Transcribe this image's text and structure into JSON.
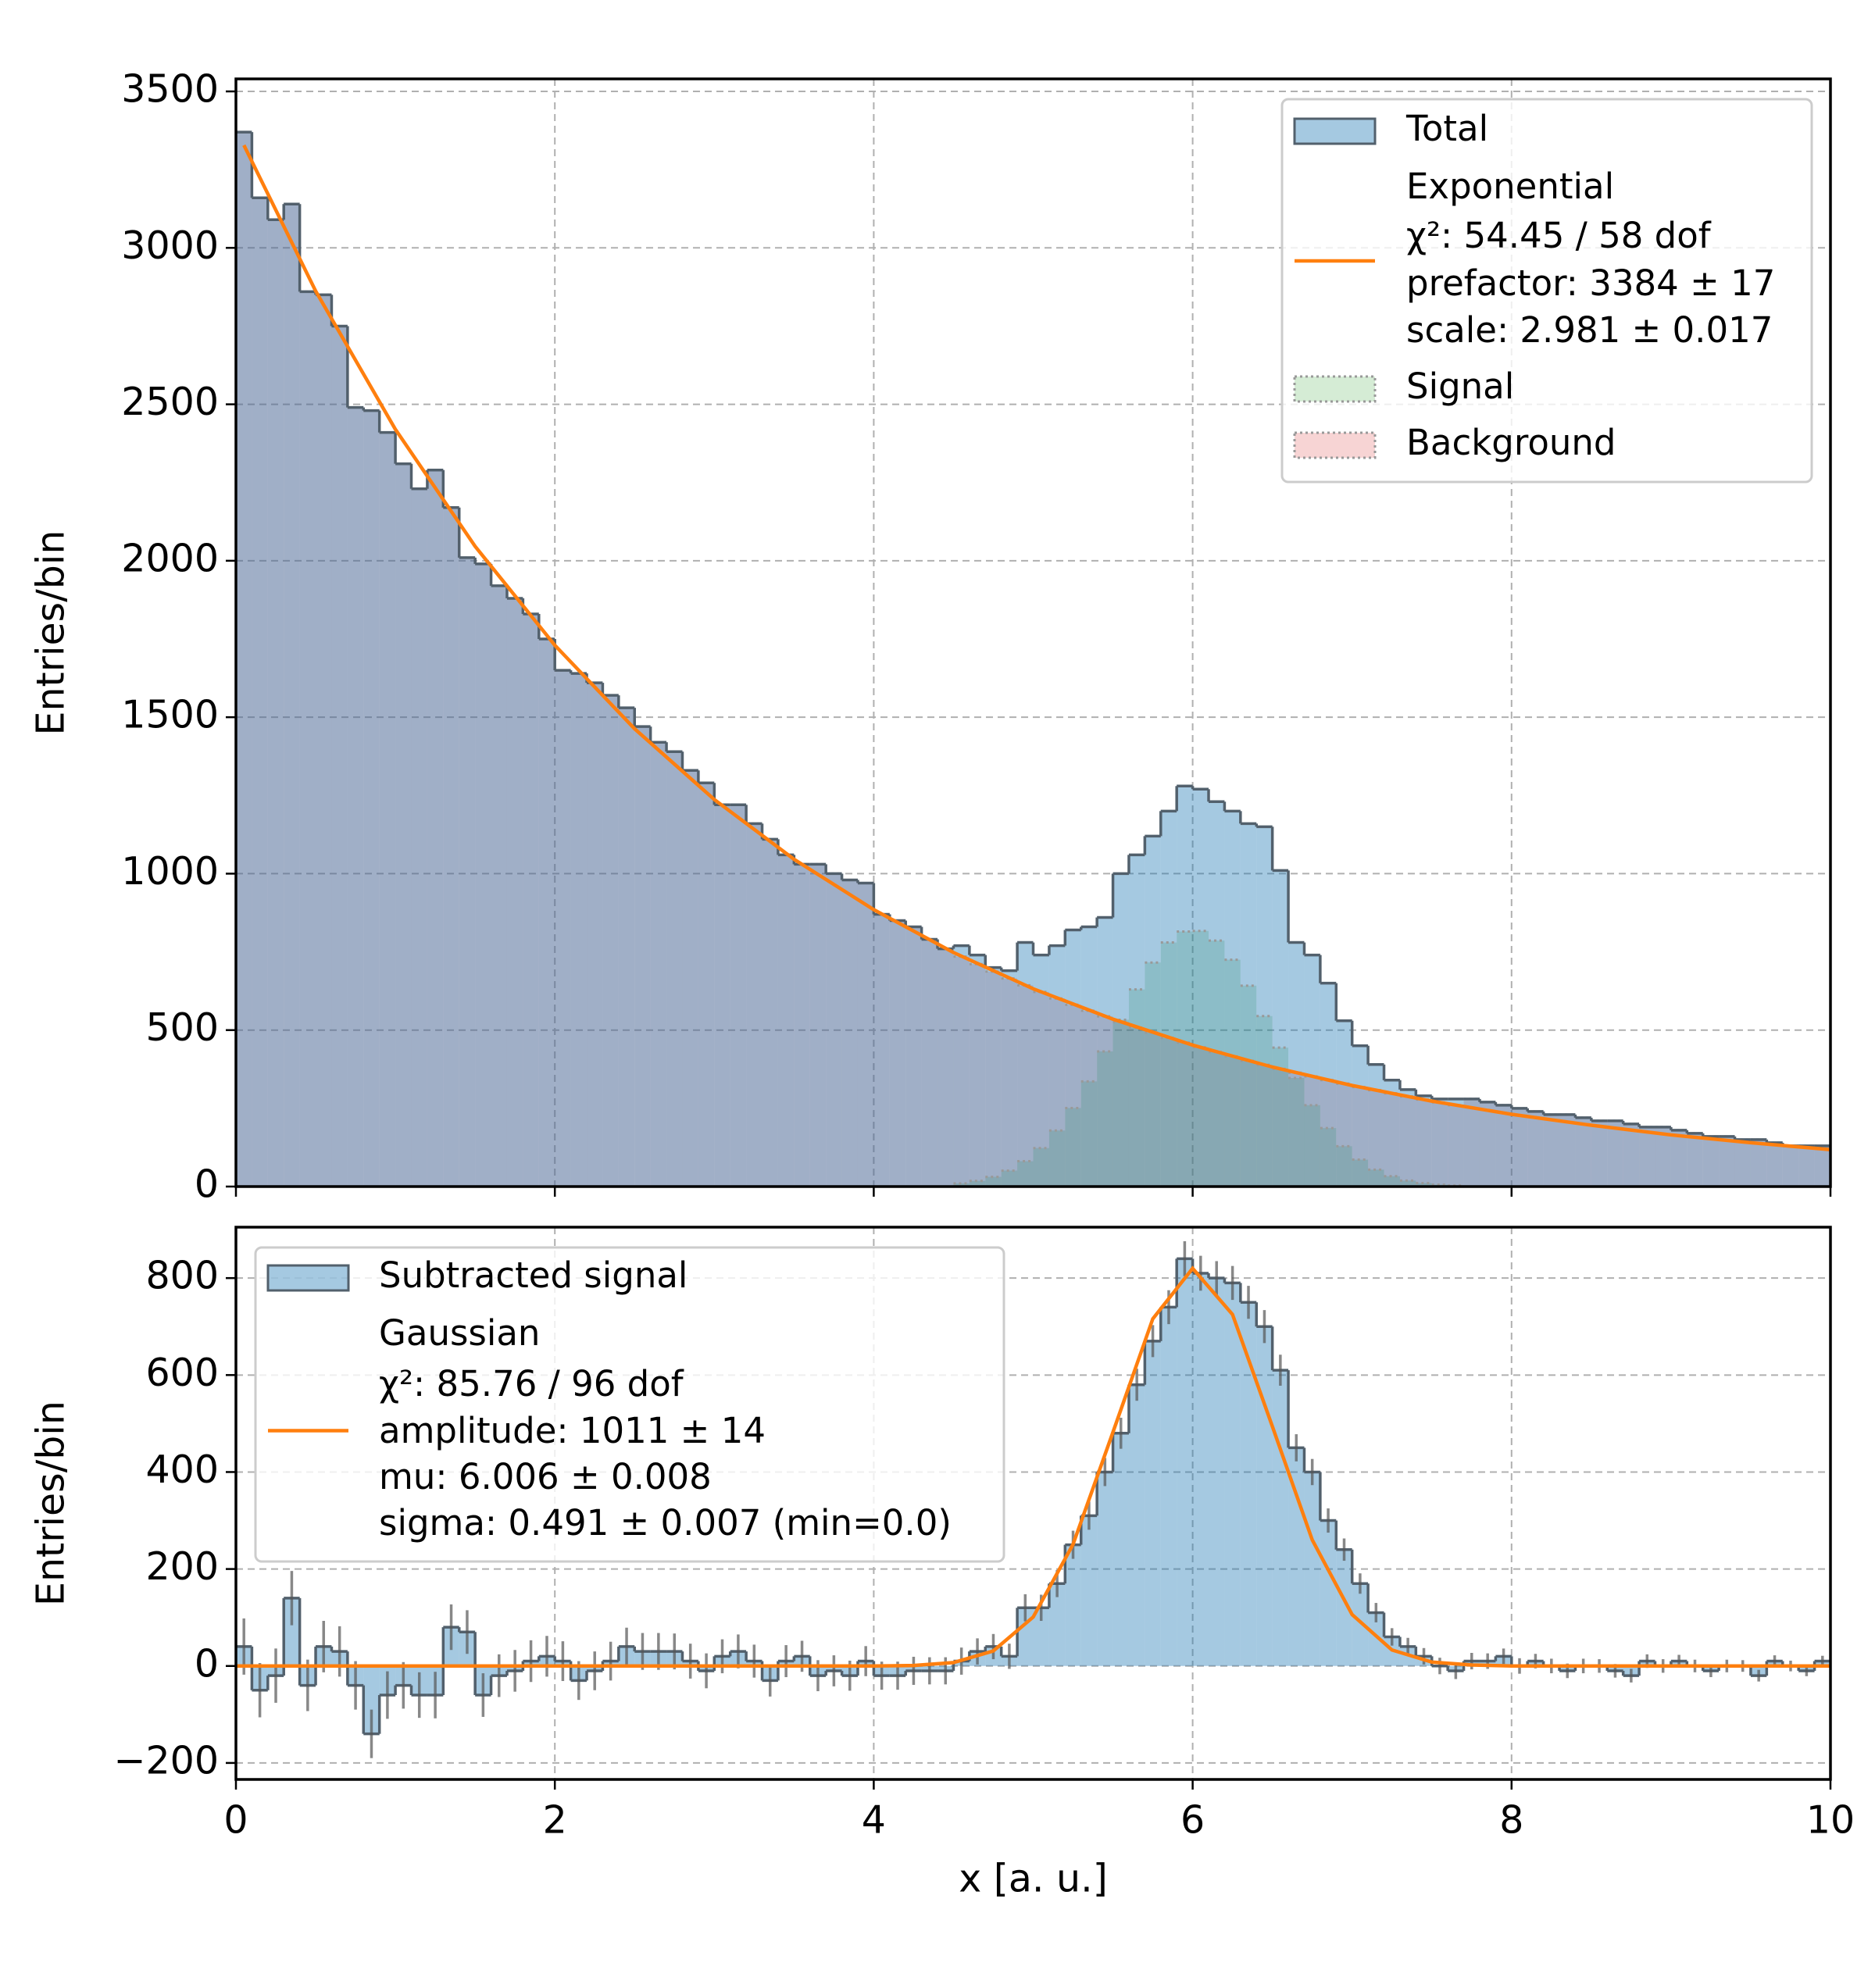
{
  "chart_data": [
    {
      "type": "histogram",
      "ylabel": "Entries/bin",
      "bins": [
        0,
        0.1,
        0.2,
        0.3,
        0.4,
        0.5,
        0.6,
        0.7,
        0.8,
        0.9,
        1,
        1.1,
        1.2,
        1.3,
        1.4,
        1.5,
        1.6,
        1.7,
        1.8,
        1.9,
        2,
        2.1,
        2.2,
        2.3,
        2.4,
        2.5,
        2.6,
        2.7,
        2.8,
        2.9,
        3,
        3.1,
        3.2,
        3.3,
        3.4,
        3.5,
        3.6,
        3.7,
        3.8,
        3.9,
        4,
        4.1,
        4.2,
        4.3,
        4.4,
        4.5,
        4.6,
        4.7,
        4.8,
        4.9,
        5,
        5.1,
        5.2,
        5.3,
        5.4,
        5.5,
        5.6,
        5.7,
        5.8,
        5.9,
        6,
        6.1,
        6.2,
        6.3,
        6.4,
        6.5,
        6.6,
        6.7,
        6.8,
        6.9,
        7,
        7.1,
        7.2,
        7.3,
        7.4,
        7.5,
        7.6,
        7.7,
        7.8,
        7.9,
        8,
        8.1,
        8.2,
        8.3,
        8.4,
        8.5,
        8.6,
        8.7,
        8.8,
        8.9,
        9,
        9.1,
        9.2,
        9.3,
        9.4,
        9.5,
        9.6,
        9.7,
        9.8,
        9.9,
        10
      ],
      "series": [
        {
          "name": "Total",
          "color": "#1f77b4",
          "opacity": 0.4,
          "values": [
            3370,
            3160,
            3090,
            3140,
            2860,
            2850,
            2750,
            2490,
            2480,
            2410,
            2310,
            2230,
            2290,
            2170,
            2010,
            1990,
            1920,
            1880,
            1830,
            1750,
            1650,
            1640,
            1610,
            1570,
            1530,
            1470,
            1420,
            1390,
            1330,
            1290,
            1220,
            1220,
            1160,
            1110,
            1060,
            1030,
            1030,
            1000,
            980,
            970,
            870,
            850,
            830,
            790,
            760,
            770,
            740,
            700,
            690,
            780,
            740,
            770,
            820,
            830,
            860,
            1000,
            1060,
            1120,
            1200,
            1280,
            1270,
            1230,
            1200,
            1160,
            1150,
            1010,
            780,
            740,
            650,
            530,
            450,
            390,
            340,
            310,
            290,
            280,
            280,
            280,
            270,
            260,
            250,
            240,
            230,
            230,
            220,
            210,
            210,
            200,
            190,
            190,
            180,
            170,
            160,
            160,
            150,
            150,
            140,
            130,
            130,
            130
          ]
        },
        {
          "name": "Signal",
          "color": "#2ca02c",
          "opacity": 0.2,
          "values": [
            0,
            0,
            0,
            0,
            0,
            0,
            0,
            0,
            0,
            0,
            0,
            0,
            0,
            0,
            0,
            0,
            0,
            0,
            0,
            0,
            0,
            0,
            0,
            0,
            0,
            0,
            0,
            0,
            0,
            0,
            0,
            0,
            0,
            0,
            0,
            0,
            0,
            0,
            0,
            0,
            0,
            0,
            0,
            0,
            0,
            10,
            18,
            31,
            51,
            81,
            123,
            179,
            251,
            336,
            432,
            533,
            630,
            716,
            780,
            815,
            817,
            786,
            725,
            642,
            545,
            444,
            347,
            260,
            187,
            129,
            86,
            54,
            33,
            19,
            11,
            6,
            3,
            0,
            0,
            0,
            0,
            0,
            0,
            0,
            0,
            0,
            0,
            0,
            0,
            0,
            0,
            0,
            0,
            0,
            0,
            0,
            0,
            0,
            0,
            0
          ]
        },
        {
          "name": "Background",
          "color": "#d62728",
          "opacity": 0.2,
          "values": [
            3370,
            3160,
            3090,
            3140,
            2860,
            2850,
            2750,
            2490,
            2480,
            2410,
            2310,
            2230,
            2290,
            2170,
            2010,
            1990,
            1920,
            1880,
            1830,
            1750,
            1650,
            1640,
            1610,
            1570,
            1530,
            1470,
            1420,
            1390,
            1330,
            1290,
            1220,
            1220,
            1160,
            1110,
            1060,
            1030,
            1030,
            1000,
            980,
            970,
            870,
            850,
            830,
            790,
            760,
            735,
            711,
            687,
            665,
            643,
            622,
            601,
            581,
            562,
            544,
            526,
            508,
            492,
            475,
            460,
            445,
            430,
            416,
            402,
            389,
            376,
            364,
            352,
            340,
            329,
            318,
            308,
            298,
            288,
            278,
            269,
            260,
            280,
            270,
            260,
            250,
            240,
            230,
            230,
            220,
            210,
            210,
            200,
            190,
            190,
            180,
            170,
            160,
            160,
            150,
            150,
            140,
            130,
            130,
            130
          ]
        }
      ],
      "fit": {
        "name": [
          "Exponential",
          "χ²: 54.45 / 58 dof",
          "prefactor: 3384 ± 17",
          "scale: 2.981 ± 0.017"
        ],
        "color": "#ff7f0e",
        "x": [
          0.05,
          0.5,
          1,
          1.5,
          2,
          2.5,
          3,
          3.5,
          4,
          4.5,
          5,
          5.5,
          6,
          6.5,
          7,
          7.5,
          8,
          8.5,
          9,
          9.5,
          10
        ],
        "values": [
          3328,
          2862,
          2420,
          2046,
          1730,
          1463,
          1237,
          1046,
          885,
          748,
          632,
          535,
          452,
          382,
          323,
          273,
          231,
          196,
          165,
          140,
          118
        ]
      },
      "xlim": [
        0,
        10
      ],
      "xticks": [
        0,
        2,
        4,
        6,
        8,
        10
      ],
      "ylim": [
        0,
        3540
      ],
      "yticks": [
        0,
        500,
        1000,
        1500,
        2000,
        2500,
        3000,
        3500
      ],
      "grid": true,
      "legend": "upper right"
    },
    {
      "type": "histogram",
      "ylabel": "Entries/bin",
      "xlabel": "x [a. u.]",
      "bins": [
        0,
        0.1,
        0.2,
        0.3,
        0.4,
        0.5,
        0.6,
        0.7,
        0.8,
        0.9,
        1,
        1.1,
        1.2,
        1.3,
        1.4,
        1.5,
        1.6,
        1.7,
        1.8,
        1.9,
        2,
        2.1,
        2.2,
        2.3,
        2.4,
        2.5,
        2.6,
        2.7,
        2.8,
        2.9,
        3,
        3.1,
        3.2,
        3.3,
        3.4,
        3.5,
        3.6,
        3.7,
        3.8,
        3.9,
        4,
        4.1,
        4.2,
        4.3,
        4.4,
        4.5,
        4.6,
        4.7,
        4.8,
        4.9,
        5,
        5.1,
        5.2,
        5.3,
        5.4,
        5.5,
        5.6,
        5.7,
        5.8,
        5.9,
        6,
        6.1,
        6.2,
        6.3,
        6.4,
        6.5,
        6.6,
        6.7,
        6.8,
        6.9,
        7,
        7.1,
        7.2,
        7.3,
        7.4,
        7.5,
        7.6,
        7.7,
        7.8,
        7.9,
        8,
        8.1,
        8.2,
        8.3,
        8.4,
        8.5,
        8.6,
        8.7,
        8.8,
        8.9,
        9,
        9.1,
        9.2,
        9.3,
        9.4,
        9.5,
        9.6,
        9.7,
        9.8,
        9.9,
        10
      ],
      "series": [
        {
          "name": "Subtracted signal",
          "color": "#1f77b4",
          "opacity": 0.4,
          "values": [
            40,
            -50,
            -20,
            140,
            -40,
            40,
            30,
            -40,
            -140,
            -60,
            -40,
            -60,
            -60,
            80,
            70,
            -60,
            -20,
            -10,
            10,
            20,
            10,
            -30,
            -10,
            10,
            40,
            30,
            30,
            30,
            10,
            -10,
            20,
            30,
            10,
            -30,
            10,
            20,
            -20,
            -10,
            -20,
            10,
            -20,
            -20,
            -10,
            -10,
            -10,
            10,
            30,
            40,
            20,
            120,
            120,
            170,
            250,
            310,
            400,
            480,
            580,
            670,
            740,
            840,
            810,
            800,
            790,
            750,
            700,
            610,
            450,
            400,
            300,
            240,
            170,
            110,
            60,
            40,
            20,
            0,
            -10,
            10,
            10,
            20,
            0,
            10,
            0,
            -10,
            0,
            0,
            -10,
            -20,
            10,
            0,
            10,
            0,
            -10,
            0,
            0,
            -20,
            10,
            0,
            -10,
            10
          ],
          "errors": [
            58,
            56,
            56,
            56,
            53,
            53,
            52,
            50,
            50,
            49,
            48,
            47,
            48,
            47,
            45,
            45,
            44,
            43,
            43,
            42,
            41,
            40,
            40,
            40,
            39,
            38,
            38,
            37,
            36,
            36,
            35,
            35,
            34,
            33,
            33,
            32,
            32,
            32,
            31,
            31,
            29,
            29,
            29,
            28,
            28,
            28,
            27,
            26,
            26,
            28,
            27,
            28,
            29,
            29,
            29,
            32,
            33,
            33,
            35,
            36,
            36,
            35,
            35,
            34,
            34,
            32,
            28,
            27,
            25,
            23,
            21,
            20,
            18,
            18,
            17,
            17,
            17,
            17,
            16,
            16,
            16,
            15,
            15,
            15,
            15,
            14,
            14,
            14,
            14,
            14,
            13,
            13,
            13,
            13,
            12,
            12,
            12,
            11,
            11,
            11
          ]
        }
      ],
      "fit": {
        "name": [
          "Gaussian",
          "χ²: 85.76 / 96 dof",
          "amplitude: 1011 ± 14",
          "mu: 6.006 ± 0.008",
          "sigma: 0.491 ± 0.007 (min=0.0)"
        ],
        "color": "#ff7f0e",
        "x": [
          0,
          3.5,
          4,
          4.25,
          4.5,
          4.75,
          5,
          5.25,
          5.5,
          5.75,
          6,
          6.25,
          6.5,
          6.75,
          7,
          7.25,
          7.5,
          7.75,
          8,
          8.5,
          10
        ],
        "values": [
          0,
          0,
          0,
          1,
          7,
          31,
          101,
          251,
          482,
          716,
          820,
          725,
          494,
          260,
          106,
          33,
          8,
          2,
          0,
          0,
          0
        ]
      },
      "xlim": [
        0,
        10
      ],
      "xticks": [
        0,
        2,
        4,
        6,
        8,
        10
      ],
      "ylim": [
        -234,
        905
      ],
      "yticks": [
        {
          "value": -200,
          "label": "−200"
        },
        0,
        200,
        400,
        600,
        800
      ],
      "grid": true,
      "legend": "upper left"
    }
  ]
}
